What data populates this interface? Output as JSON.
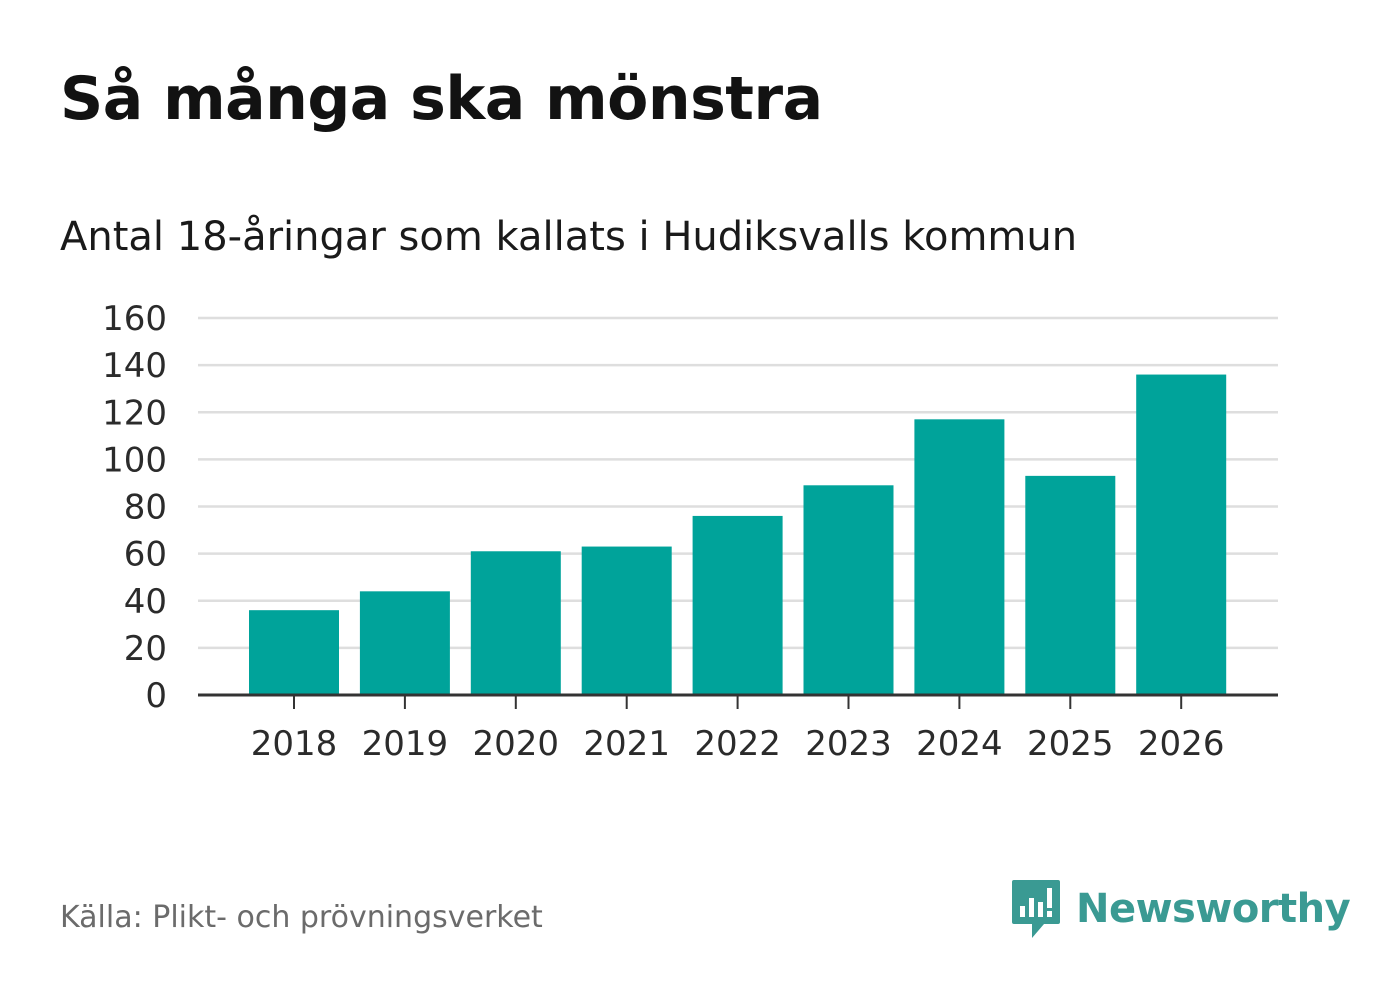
{
  "header": {
    "title": "Så många ska mönstra",
    "subtitle": "Antal 18-åringar som kallats i Hudiksvalls kommun"
  },
  "footer": {
    "source": "Källa: Plikt- och prövningsverket",
    "brand_name": "Newsworthy",
    "brand_icon": "newsworthy-logo-icon"
  },
  "colors": {
    "bar": "#00a39a",
    "grid": "#dedede",
    "axis": "#333333",
    "brand": "#3a9a93"
  },
  "chart_data": {
    "type": "bar",
    "title": "Antal 18-åringar som kallats i Hudiksvalls kommun",
    "xlabel": "",
    "ylabel": "",
    "categories": [
      "2018",
      "2019",
      "2020",
      "2021",
      "2022",
      "2023",
      "2024",
      "2025",
      "2026"
    ],
    "values": [
      36,
      44,
      61,
      63,
      76,
      89,
      117,
      93,
      136
    ],
    "ylim": [
      0,
      160
    ],
    "yticks": [
      0,
      20,
      40,
      60,
      80,
      100,
      120,
      140,
      160
    ],
    "grid": true,
    "legend": "none"
  }
}
